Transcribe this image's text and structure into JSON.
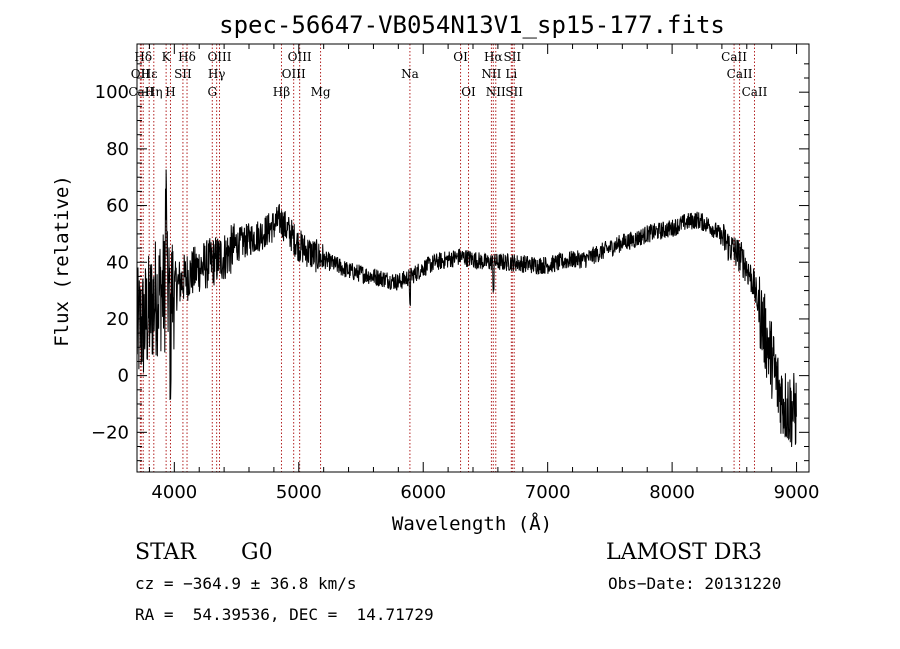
{
  "chart_data": {
    "type": "line",
    "title": "spec-56647-VB054N13V1_sp15-177.fits",
    "xlabel": "Wavelength (Å)",
    "ylabel": "Flux (relative)",
    "xlim": [
      3700,
      9100
    ],
    "ylim": [
      -34,
      117
    ],
    "xticks": [
      4000,
      5000,
      6000,
      7000,
      8000,
      9000
    ],
    "xtick_labels": [
      "4000",
      "5000",
      "6000",
      "7000",
      "8000",
      "9000"
    ],
    "yticks": [
      -20,
      0,
      20,
      40,
      60,
      80,
      100
    ],
    "ytick_labels": [
      "−20",
      "0",
      "20",
      "40",
      "60",
      "80",
      "100"
    ],
    "series_color": "#000000",
    "line_color": "#b22222",
    "continuum": [
      [
        3700,
        16
      ],
      [
        3750,
        18
      ],
      [
        3800,
        22
      ],
      [
        3850,
        28
      ],
      [
        3900,
        30
      ],
      [
        3950,
        29
      ],
      [
        4000,
        31
      ],
      [
        4050,
        33
      ],
      [
        4100,
        35
      ],
      [
        4200,
        38
      ],
      [
        4300,
        40
      ],
      [
        4400,
        42
      ],
      [
        4500,
        46
      ],
      [
        4600,
        48
      ],
      [
        4700,
        50
      ],
      [
        4800,
        53
      ],
      [
        4850,
        55
      ],
      [
        4900,
        52
      ],
      [
        5000,
        46
      ],
      [
        5100,
        43
      ],
      [
        5200,
        41
      ],
      [
        5300,
        39
      ],
      [
        5400,
        37
      ],
      [
        5500,
        36
      ],
      [
        5600,
        35
      ],
      [
        5700,
        34
      ],
      [
        5800,
        33
      ],
      [
        5900,
        35
      ],
      [
        6000,
        38
      ],
      [
        6100,
        40
      ],
      [
        6200,
        41
      ],
      [
        6300,
        42
      ],
      [
        6400,
        41
      ],
      [
        6500,
        40
      ],
      [
        6600,
        40
      ],
      [
        6700,
        40
      ],
      [
        6800,
        39.5
      ],
      [
        6900,
        39
      ],
      [
        7000,
        39
      ],
      [
        7100,
        40
      ],
      [
        7200,
        41
      ],
      [
        7300,
        41
      ],
      [
        7400,
        43
      ],
      [
        7500,
        45
      ],
      [
        7600,
        47
      ],
      [
        7700,
        48
      ],
      [
        7800,
        50
      ],
      [
        7900,
        51
      ],
      [
        8000,
        52
      ],
      [
        8100,
        54
      ],
      [
        8200,
        55
      ],
      [
        8300,
        53
      ],
      [
        8400,
        49
      ],
      [
        8450,
        46
      ],
      [
        8500,
        44
      ],
      [
        8550,
        42
      ],
      [
        8600,
        38
      ],
      [
        8650,
        33
      ],
      [
        8700,
        24
      ],
      [
        8750,
        14
      ],
      [
        8800,
        6
      ],
      [
        8850,
        -4
      ],
      [
        8900,
        -10
      ],
      [
        8950,
        -12
      ],
      [
        9000,
        -13
      ]
    ],
    "lines": [
      {
        "label": "Hδ",
        "wavelength": 3750,
        "row": 0
      },
      {
        "label": "OII",
        "wavelength": 3727,
        "row": 1
      },
      {
        "label": "CaII",
        "wavelength": 3734,
        "row": 2
      },
      {
        "label": "Hε",
        "wavelength": 3798,
        "row": 1
      },
      {
        "label": "Hη",
        "wavelength": 3835,
        "row": 2
      },
      {
        "label": "K",
        "wavelength": 3934,
        "row": 0
      },
      {
        "label": "H",
        "wavelength": 3969,
        "row": 2
      },
      {
        "label": "SII",
        "wavelength": 4069,
        "row": 1
      },
      {
        "label": "Hδ",
        "wavelength": 4102,
        "row": 0
      },
      {
        "label": "OIII",
        "wavelength": 4363,
        "row": 0
      },
      {
        "label": "Hγ",
        "wavelength": 4340,
        "row": 1
      },
      {
        "label": "G",
        "wavelength": 4305,
        "row": 2
      },
      {
        "label": "Hβ",
        "wavelength": 4861,
        "row": 2
      },
      {
        "label": "OIII",
        "wavelength": 5007,
        "row": 0
      },
      {
        "label": "OIII",
        "wavelength": 4959,
        "row": 1
      },
      {
        "label": "Mg",
        "wavelength": 5175,
        "row": 2
      },
      {
        "label": "Na",
        "wavelength": 5893,
        "row": 1
      },
      {
        "label": "OI",
        "wavelength": 6300,
        "row": 0
      },
      {
        "label": "OI",
        "wavelength": 6364,
        "row": 2
      },
      {
        "label": "Hα",
        "wavelength": 6563,
        "row": 0
      },
      {
        "label": "NII",
        "wavelength": 6548,
        "row": 1
      },
      {
        "label": "NII",
        "wavelength": 6583,
        "row": 2
      },
      {
        "label": "SII",
        "wavelength": 6716,
        "row": 0
      },
      {
        "label": "Li",
        "wavelength": 6708,
        "row": 1
      },
      {
        "label": "SII",
        "wavelength": 6731,
        "row": 2
      },
      {
        "label": "CaII",
        "wavelength": 8498,
        "row": 0
      },
      {
        "label": "CaII",
        "wavelength": 8542,
        "row": 1
      },
      {
        "label": "CaII",
        "wavelength": 8662,
        "row": 2
      }
    ]
  },
  "footer": {
    "class_label": "STAR",
    "subclass_label": "G0",
    "survey": "LAMOST DR3",
    "velocity": "cz = −364.9 ± 36.8 km/s",
    "obs_date": "Obs−Date: 20131220",
    "coords": "RA =  54.39536, DEC =  14.71729"
  }
}
